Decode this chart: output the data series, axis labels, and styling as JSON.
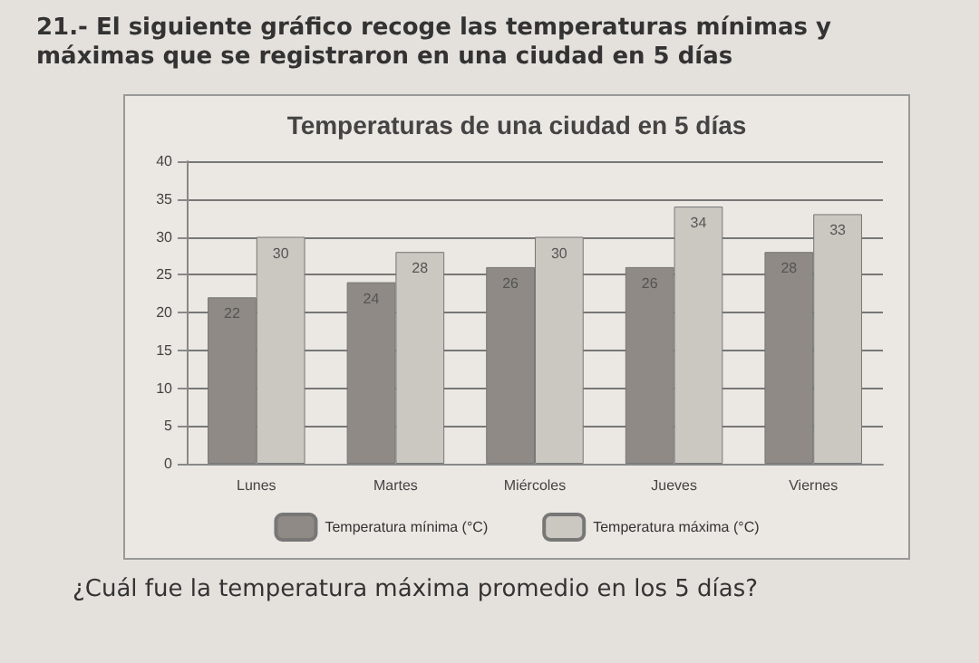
{
  "chart_data": {
    "type": "bar",
    "title": "Temperaturas de una ciudad en 5 días",
    "annotations": [
      "21.- El siguiente gráfico recoge las temperaturas mínimas y máximas que se registraron en una ciudad en 5 días",
      "¿Cuál fue la temperatura máxima promedio en los 5 días?"
    ],
    "categories": [
      "Lunes",
      "Martes",
      "Miércoles",
      "Jueves",
      "Viernes"
    ],
    "series": [
      {
        "name": "Temperatura mínima (°C)",
        "color": "#8f8a85",
        "values": [
          22,
          24,
          26,
          26,
          28
        ]
      },
      {
        "name": "Temperatura máxima (°C)",
        "color": "#cbc7c1",
        "values": [
          30,
          28,
          30,
          34,
          33
        ]
      }
    ],
    "ylim": [
      0,
      40
    ],
    "yticks": [
      0,
      5,
      10,
      15,
      20,
      25,
      30,
      35,
      40
    ],
    "grid": "y",
    "legend": "bottom",
    "data_labels": true
  }
}
